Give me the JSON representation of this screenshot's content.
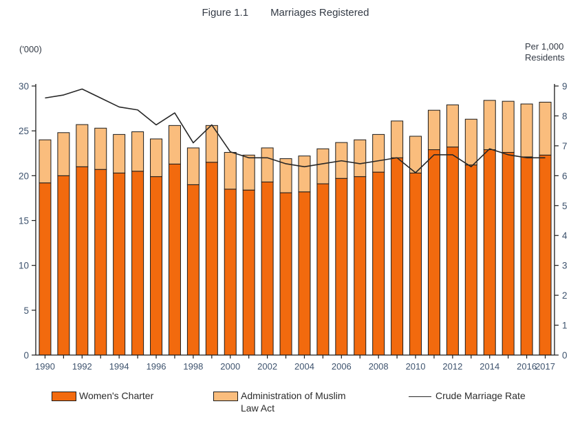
{
  "figure": {
    "title_prefix": "Figure 1.1",
    "title": "Marriages Registered",
    "left_axis_unit": "('000)",
    "right_axis_unit": "Per 1,000 Residents"
  },
  "legend": {
    "womens_charter": "Women's Charter",
    "amla": "Administration of Muslim Law Act",
    "crude_marriage_rate": "Crude Marriage Rate"
  },
  "colors": {
    "womens_charter_bar": "#F26A0E",
    "amla_bar": "#FABD7D",
    "bar_outline": "#1a1a1a",
    "rate_line": "#262626",
    "axis": "#1a1a1a",
    "tick_text": "#3e536e"
  },
  "chart_data": {
    "type": "combo",
    "title": "Figure 1.1 Marriages Registered",
    "categories": [
      "1990",
      "1991",
      "1992",
      "1993",
      "1994",
      "1995",
      "1996",
      "1997",
      "1998",
      "1999",
      "2000",
      "2001",
      "2002",
      "2003",
      "2004",
      "2005",
      "2006",
      "2007",
      "2008",
      "2009",
      "2010",
      "2011",
      "2012",
      "2013",
      "2014",
      "2015",
      "2016",
      "2017"
    ],
    "series": [
      {
        "name": "Women's Charter",
        "type": "bar",
        "stack": true,
        "color": "#F26A0E",
        "values": [
          19.2,
          20.0,
          21.0,
          20.7,
          20.3,
          20.5,
          19.9,
          21.3,
          19.0,
          21.5,
          18.5,
          18.4,
          19.3,
          18.1,
          18.2,
          19.1,
          19.7,
          19.9,
          20.4,
          22.0,
          20.3,
          22.9,
          23.2,
          21.2,
          22.9,
          22.6,
          22.1,
          22.3
        ]
      },
      {
        "name": "Administration of Muslim Law Act",
        "type": "bar",
        "stack": true,
        "color": "#FABD7D",
        "values": [
          4.8,
          4.8,
          4.7,
          4.6,
          4.3,
          4.4,
          4.2,
          4.3,
          4.1,
          4.1,
          4.1,
          3.9,
          3.8,
          3.8,
          4.0,
          3.9,
          4.0,
          4.1,
          4.2,
          4.1,
          4.1,
          4.4,
          4.7,
          5.1,
          5.5,
          5.7,
          5.9,
          5.9
        ]
      },
      {
        "name": "Crude Marriage Rate",
        "type": "line",
        "axis": "right",
        "color": "#262626",
        "values": [
          8.6,
          8.7,
          8.9,
          8.6,
          8.3,
          8.2,
          7.7,
          8.1,
          7.1,
          7.7,
          6.8,
          6.6,
          6.6,
          6.4,
          6.3,
          6.4,
          6.5,
          6.4,
          6.5,
          6.6,
          6.1,
          6.7,
          6.7,
          6.3,
          6.9,
          6.7,
          6.6,
          6.6
        ]
      }
    ],
    "left_axis": {
      "label": "('000)",
      "range": [
        0,
        30
      ],
      "ticks": [
        0,
        5,
        10,
        15,
        20,
        25,
        30
      ]
    },
    "right_axis": {
      "label": "Per 1,000 Residents",
      "range": [
        0,
        9
      ],
      "ticks": [
        0,
        1,
        2,
        3,
        4,
        5,
        6,
        7,
        8,
        9
      ]
    },
    "x_tick_labels_shown": [
      "1990",
      "1992",
      "1994",
      "1996",
      "1998",
      "2000",
      "2002",
      "2004",
      "2006",
      "2008",
      "2010",
      "2012",
      "2014",
      "2016",
      "2017"
    ],
    "grid": false,
    "legend_position": "bottom"
  }
}
